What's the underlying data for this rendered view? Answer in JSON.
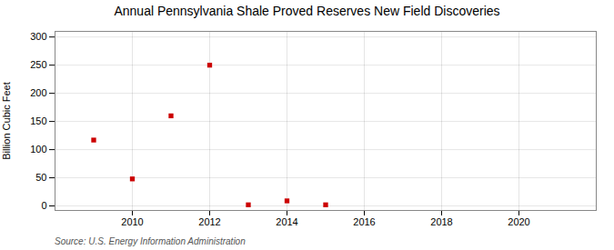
{
  "chart_data": {
    "type": "scatter",
    "title": "Annual Pennsylvania Shale Proved Reserves New Field Discoveries",
    "ylabel": "Billion Cubic Feet",
    "source": "Source: U.S. Energy Information Administration",
    "x": [
      2009,
      2010,
      2011,
      2012,
      2013,
      2014,
      2015
    ],
    "values": [
      117,
      48,
      160,
      250,
      2,
      9,
      2
    ],
    "color": "#cc0000",
    "marker": "square",
    "xlim": [
      2008.0,
      2022.0
    ],
    "ylim": [
      -8,
      310
    ],
    "xticks": [
      2010,
      2012,
      2014,
      2016,
      2018,
      2020
    ],
    "yticks": [
      0,
      50,
      100,
      150,
      200,
      250,
      300
    ],
    "grid": true
  }
}
